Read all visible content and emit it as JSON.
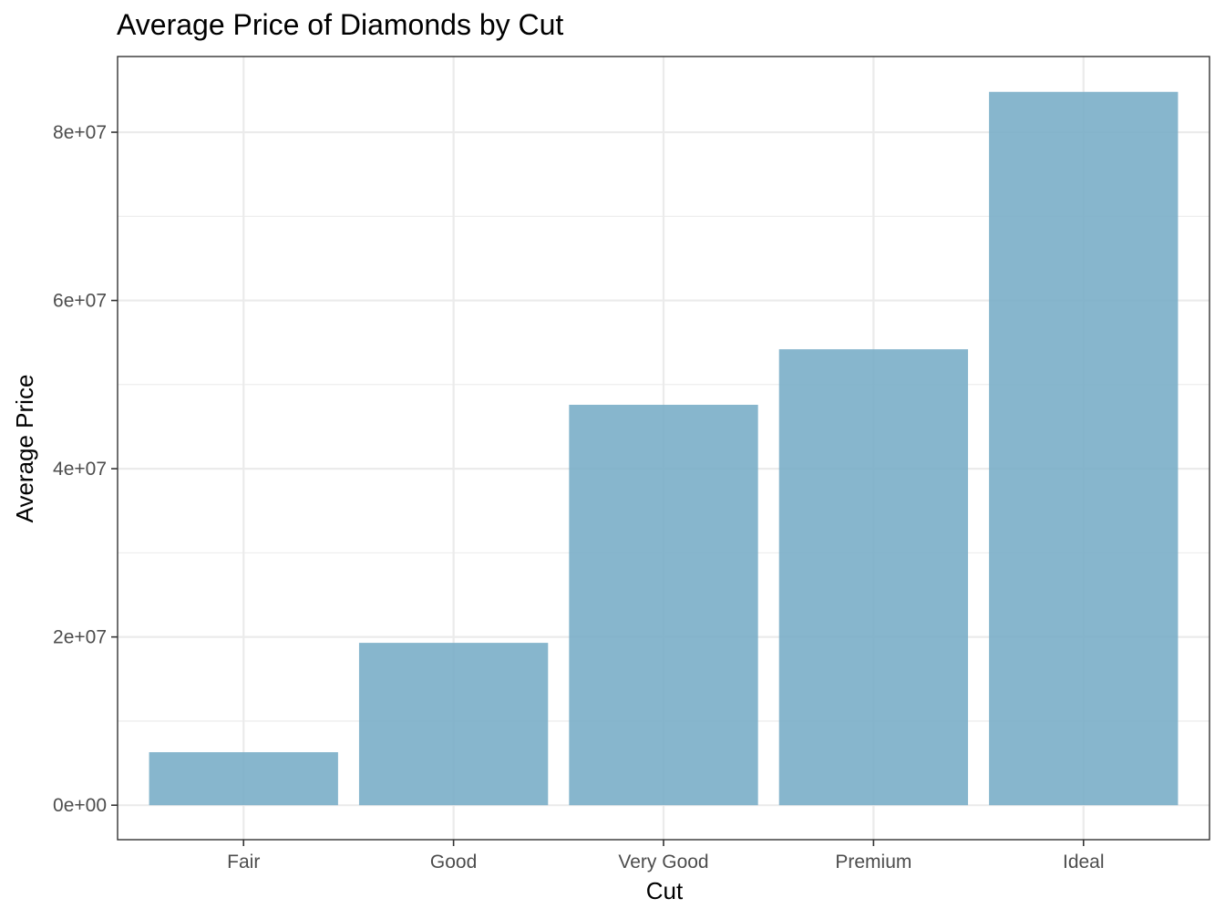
{
  "chart_data": {
    "type": "bar",
    "title": "Average Price of Diamonds by Cut",
    "xlabel": "Cut",
    "ylabel": "Average Price",
    "categories": [
      "Fair",
      "Good",
      "Very Good",
      "Premium",
      "Ideal"
    ],
    "values": [
      6300000,
      19300000,
      47600000,
      54200000,
      84800000
    ],
    "ylim": [
      -4100000,
      89000000
    ],
    "yticks": [
      0,
      20000000,
      40000000,
      60000000,
      80000000
    ],
    "ytick_labels": [
      "0e+00",
      "2e+07",
      "4e+07",
      "6e+07",
      "8e+07"
    ],
    "y_minor_ticks": [
      10000000,
      30000000,
      50000000,
      70000000
    ],
    "bar_color": "#7aaec8",
    "bar_opacity": 0.9,
    "grid": true,
    "legend": "none"
  }
}
